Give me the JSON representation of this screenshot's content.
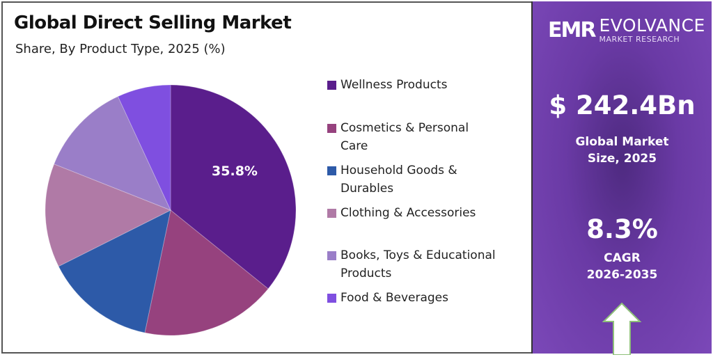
{
  "header": {
    "title": "Global Direct Selling Market",
    "subtitle": "Share, By Product Type, 2025 (%)"
  },
  "brand": {
    "mark": "EMR",
    "name": "EVOLVANCE",
    "tagline": "MARKET RESEARCH"
  },
  "stats": {
    "market_size_value": "$ 242.4Bn",
    "market_size_label_1": "Global Market",
    "market_size_label_2": "Size, 2025",
    "cagr_value": "8.3%",
    "cagr_label_1": "CAGR",
    "cagr_label_2": "2026-2035"
  },
  "legend": [
    {
      "label_1": "Wellness Products",
      "label_2": "",
      "color": "#5a1e8c"
    },
    {
      "label_1": "Cosmetics & Personal",
      "label_2": "Care",
      "color": "#96427e"
    },
    {
      "label_1": "Household Goods &",
      "label_2": "Durables",
      "color": "#2d5aa8"
    },
    {
      "label_1": "Clothing & Accessories",
      "label_2": "",
      "color": "#b07aa6"
    },
    {
      "label_1": "Books, Toys & Educational",
      "label_2": "Products",
      "color": "#9a7ec8"
    },
    {
      "label_1": "Food & Beverages",
      "label_2": "",
      "color": "#7f4fe0"
    }
  ],
  "pie_label": "35.8%",
  "chart_data": {
    "type": "pie",
    "title": "Global Direct Selling Market",
    "subtitle": "Share, By Product Type, 2025 (%)",
    "categories": [
      "Wellness Products",
      "Cosmetics & Personal Care",
      "Household Goods & Durables",
      "Clothing & Accessories",
      "Books, Toys & Educational Products",
      "Food & Beverages"
    ],
    "values": [
      35.8,
      17.5,
      14.3,
      13.4,
      12.1,
      6.9
    ],
    "labeled_values": {
      "Wellness Products": 35.8
    },
    "colors": [
      "#5a1e8c",
      "#96427e",
      "#2d5aa8",
      "#b07aa6",
      "#9a7ec8",
      "#7f4fe0"
    ],
    "start_angle": "12 o'clock, clockwise",
    "legend_position": "right"
  }
}
